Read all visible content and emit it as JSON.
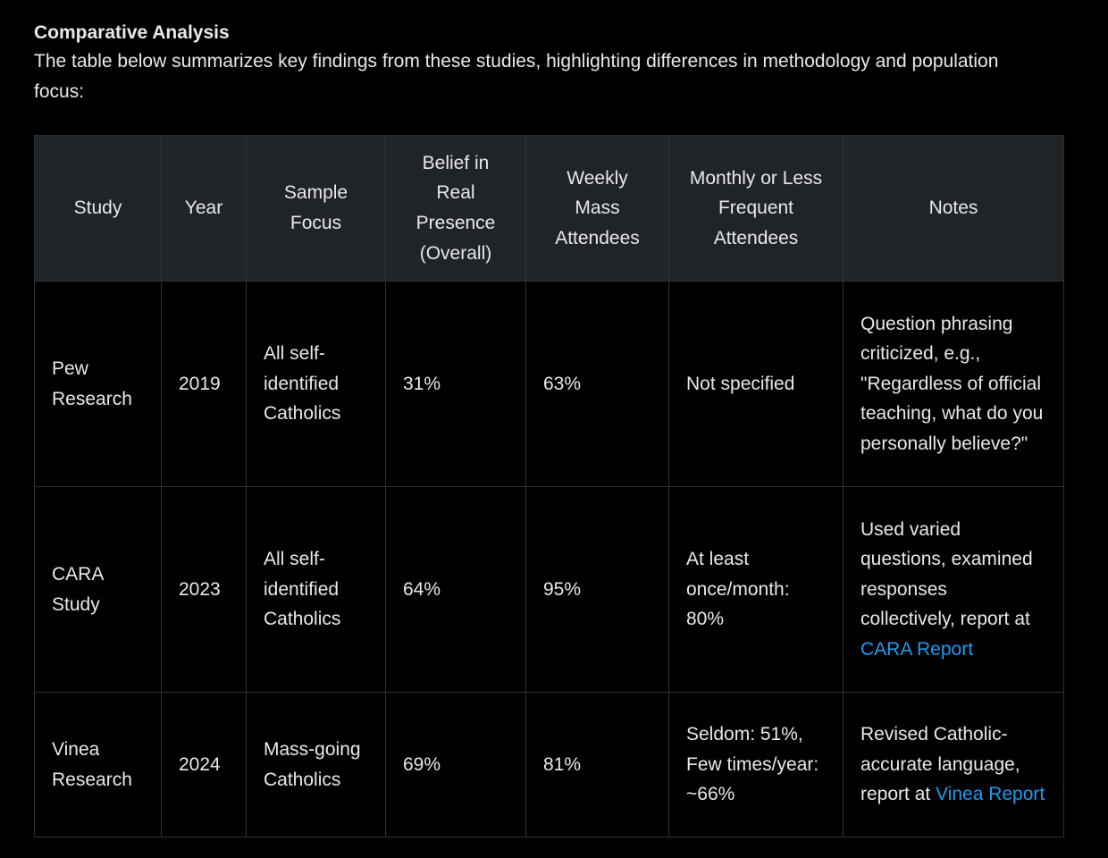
{
  "section": {
    "title": "Comparative Analysis",
    "intro": "The table below summarizes key findings from these studies, highlighting differences in methodology and population focus:"
  },
  "table": {
    "headers": [
      "Study",
      "Year",
      "Sample Focus",
      "Belief in Real Presence (Overall)",
      "Weekly Mass Attendees",
      "Monthly or Less Frequent Attendees",
      "Notes"
    ],
    "rows": [
      {
        "study": "Pew Research",
        "year": "2019",
        "sample_focus": "All self-identified Catholics",
        "belief_overall": "31%",
        "weekly": "63%",
        "monthly_or_less": "Not specified",
        "notes": "Question phrasing criticized, e.g., \"Regardless of official teaching, what do you personally believe?\""
      },
      {
        "study": "CARA Study",
        "year": "2023",
        "sample_focus": "All self-identified Catholics",
        "belief_overall": "64%",
        "weekly": "95%",
        "monthly_or_less": "At least once/month: 80%",
        "notes": "Used varied questions, examined responses collectively, report at ",
        "link": "CARA Report"
      },
      {
        "study": "Vinea Research",
        "year": "2024",
        "sample_focus": "Mass-going Catholics",
        "belief_overall": "69%",
        "weekly": "81%",
        "monthly_or_less": "Seldom: 51%, Few times/year: ~66%",
        "notes": "Revised Catholic-accurate language, report at ",
        "link": "Vinea Report"
      }
    ]
  },
  "colors": {
    "background": "#000000",
    "text": "#e7e9ea",
    "header_bg": "#202327",
    "border": "#2f3336",
    "link": "#1d9bf0"
  }
}
